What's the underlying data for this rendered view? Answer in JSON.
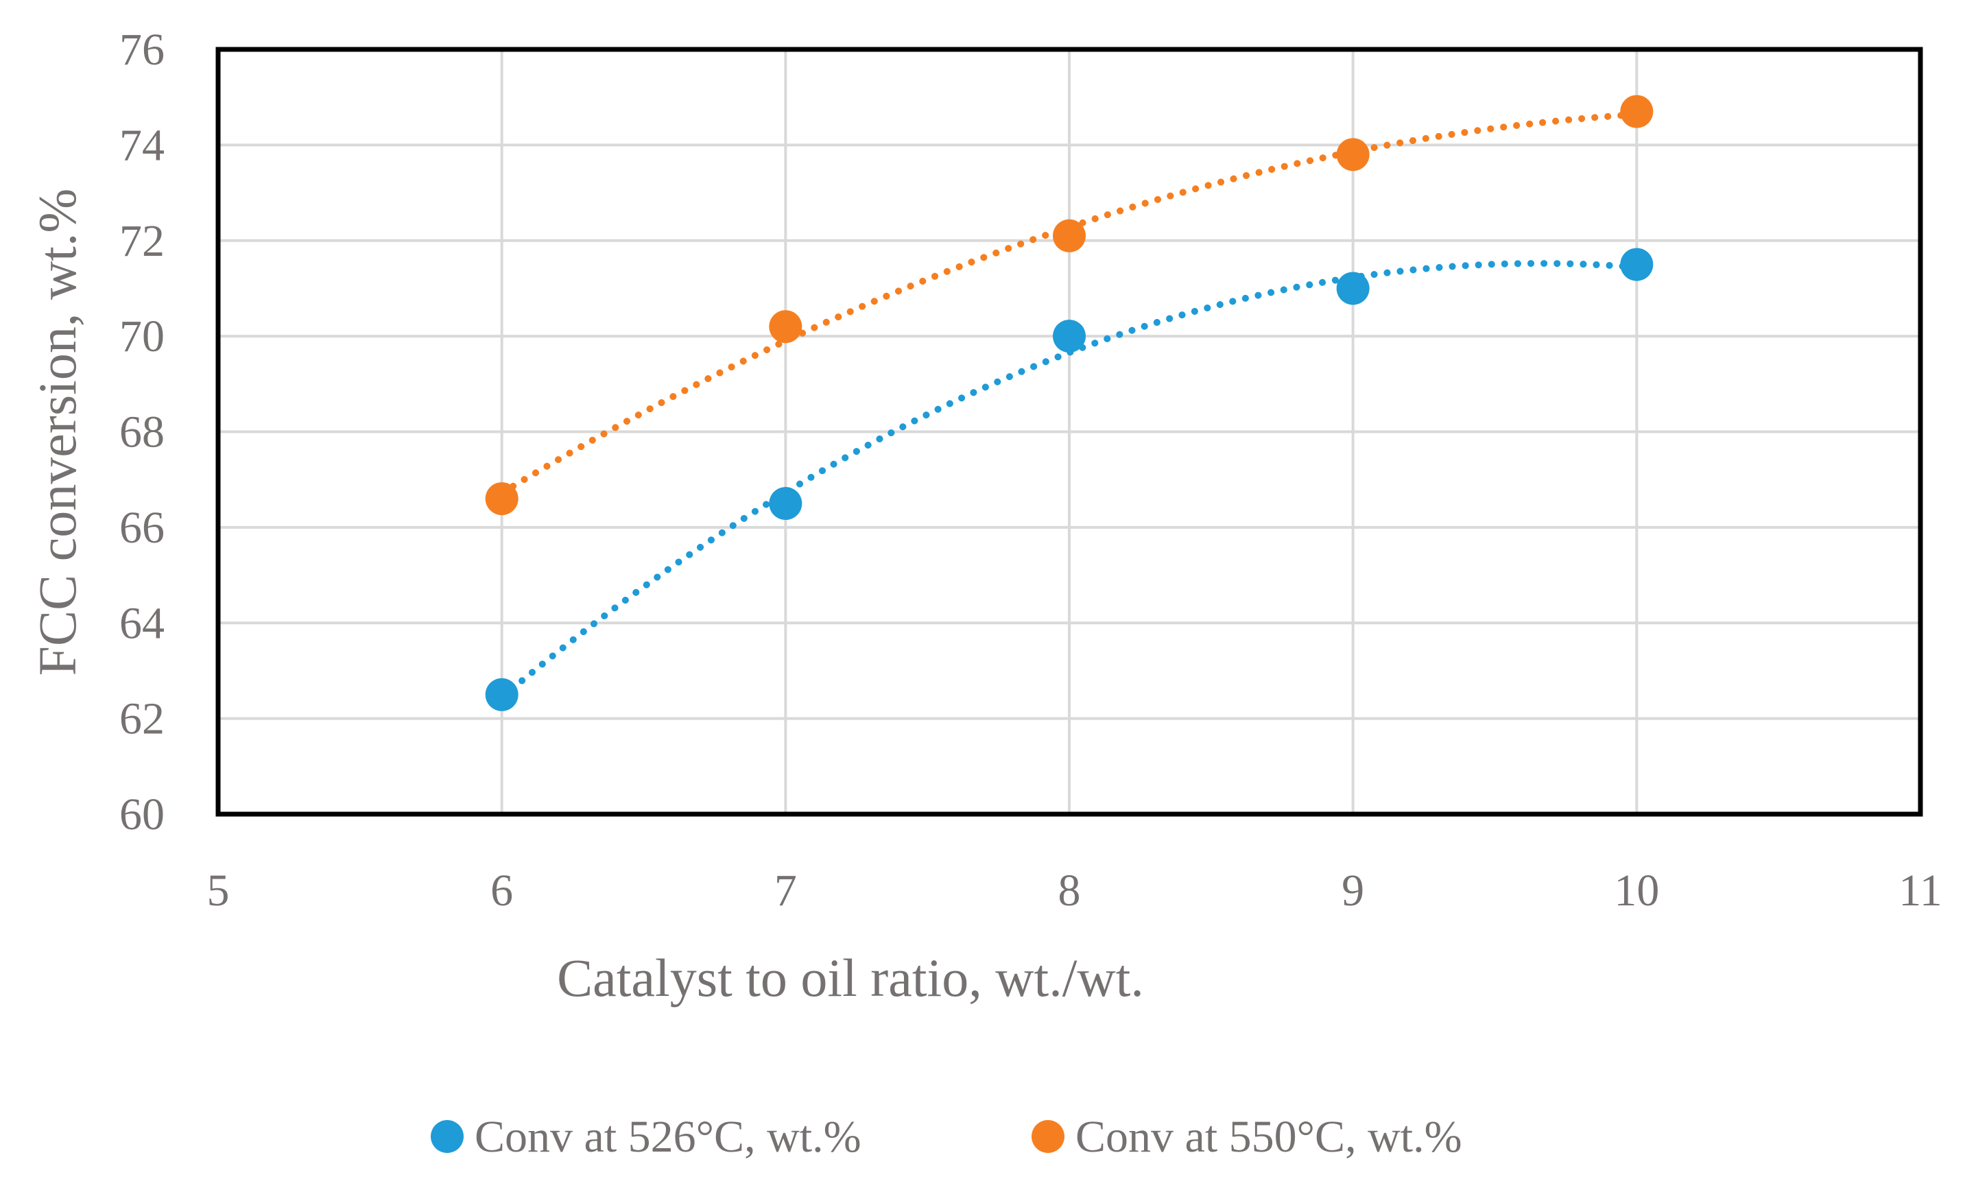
{
  "chart_data": {
    "type": "scatter",
    "title": "",
    "xlabel": "Catalyst to oil ratio, wt./wt.",
    "ylabel": "FCC conversion, wt.%",
    "xlim": [
      5,
      11
    ],
    "ylim": [
      60,
      76
    ],
    "x_ticks": [
      5,
      6,
      7,
      8,
      9,
      10,
      11
    ],
    "y_ticks": [
      60,
      62,
      64,
      66,
      68,
      70,
      72,
      74,
      76
    ],
    "grid": true,
    "legend_position": "bottom",
    "x": [
      6,
      7,
      8,
      9,
      10
    ],
    "series": [
      {
        "name": "Conv at 526°C, wt.%",
        "color": "#1f9bd7",
        "values": [
          62.5,
          66.5,
          70.0,
          71.0,
          71.5
        ],
        "trendline": "dotted polynomial"
      },
      {
        "name": "Conv at 550°C, wt.%",
        "color": "#f57f20",
        "values": [
          66.6,
          70.2,
          72.1,
          73.8,
          74.7
        ],
        "trendline": "dotted polynomial"
      }
    ]
  }
}
